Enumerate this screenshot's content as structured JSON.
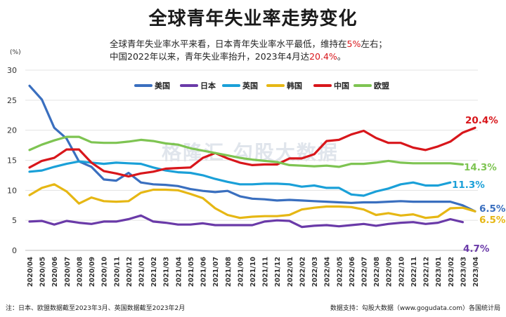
{
  "header": {
    "title": "全球青年失业率走势变化",
    "subtitle_line1_pre": "全球青年失业率水平来看，日本青年失业率水平最低，维持在",
    "subtitle_line1_hl": "5%",
    "subtitle_line1_post": "左右；",
    "subtitle_line2_pre": "中国2022年以来，青年失业率抬升，2023年4月达",
    "subtitle_line2_hl": "20.4%",
    "subtitle_line2_post": "。"
  },
  "watermark": "格隆汇   勾股大数据",
  "footer": {
    "note": "注：日本、欧盟数据截至2023年3月、英国数据截至2023年2月",
    "source": "数据支持：勾股大数据（www.gogudata.com）各国统计局"
  },
  "chart_data": {
    "type": "line",
    "yunit": "(%)",
    "ylim": [
      0,
      30
    ],
    "yticks": [
      0,
      5,
      10,
      15,
      20,
      25,
      30
    ],
    "grid": true,
    "legend_placement": "top-center",
    "x": [
      "2020/04",
      "2020/05",
      "2020/06",
      "2020/07",
      "2020/08",
      "2020/09",
      "2020/10",
      "2020/11",
      "2020/12",
      "2021/01",
      "2021/02",
      "2021/03",
      "2021/04",
      "2021/05",
      "2021/06",
      "2021/07",
      "2021/08",
      "2021/09",
      "2021/10",
      "2021/11",
      "2021/12",
      "2022/01",
      "2022/02",
      "2022/03",
      "2022/04",
      "2022/05",
      "2022/06",
      "2022/07",
      "2022/08",
      "2022/09",
      "2022/10",
      "2022/11",
      "2022/12",
      "2023/01",
      "2023/02",
      "2023/03",
      "2023/04"
    ],
    "series": [
      {
        "name": "美国",
        "color": "#3a6fbf",
        "values": [
          27.4,
          25.1,
          20.4,
          18.6,
          14.8,
          13.9,
          11.8,
          11.6,
          12.9,
          11.3,
          11.0,
          10.9,
          10.7,
          10.2,
          9.9,
          9.7,
          9.9,
          9.0,
          8.6,
          8.5,
          8.3,
          8.4,
          8.3,
          8.2,
          8.1,
          8.0,
          7.9,
          8.0,
          8.0,
          8.1,
          8.2,
          8.1,
          8.1,
          8.1,
          8.1,
          7.5,
          6.5
        ],
        "end_label": "6.5%"
      },
      {
        "name": "日本",
        "color": "#6a3aa8",
        "values": [
          4.8,
          4.9,
          4.3,
          4.9,
          4.6,
          4.4,
          4.8,
          4.8,
          5.2,
          5.8,
          4.8,
          4.6,
          4.3,
          4.3,
          4.5,
          4.2,
          4.2,
          4.2,
          4.2,
          4.8,
          5.0,
          4.9,
          3.9,
          4.1,
          4.2,
          4.0,
          4.2,
          4.4,
          4.1,
          4.4,
          4.6,
          4.7,
          4.4,
          4.6,
          5.2,
          4.7,
          null
        ],
        "end_label": "4.7%"
      },
      {
        "name": "英国",
        "color": "#1aa0d8",
        "values": [
          13.1,
          13.3,
          13.9,
          14.4,
          14.8,
          14.6,
          14.4,
          14.6,
          14.5,
          14.4,
          13.8,
          13.3,
          13.0,
          12.9,
          12.5,
          11.9,
          11.4,
          11.0,
          11.0,
          11.1,
          11.1,
          11.0,
          10.6,
          10.8,
          10.4,
          10.4,
          9.3,
          9.1,
          9.8,
          10.3,
          11.0,
          11.3,
          10.8,
          10.8,
          11.3,
          null,
          null
        ],
        "end_label": "11.3%"
      },
      {
        "name": "韩国",
        "color": "#e6b714",
        "values": [
          9.2,
          10.4,
          11.0,
          9.8,
          7.8,
          8.8,
          8.2,
          8.1,
          8.2,
          9.6,
          10.1,
          10.1,
          10.0,
          9.4,
          8.7,
          7.0,
          5.9,
          5.4,
          5.6,
          5.7,
          5.7,
          5.9,
          6.8,
          7.1,
          7.3,
          7.3,
          7.2,
          6.8,
          5.9,
          6.2,
          5.8,
          6.0,
          5.4,
          5.6,
          7.0,
          7.1,
          6.5
        ],
        "end_label": "6.5%"
      },
      {
        "name": "中国",
        "color": "#d8161b",
        "values": [
          13.8,
          14.9,
          15.4,
          16.8,
          16.8,
          14.6,
          13.2,
          12.8,
          12.3,
          12.8,
          13.1,
          13.6,
          13.7,
          13.8,
          15.4,
          16.2,
          15.3,
          14.6,
          14.2,
          14.3,
          14.3,
          15.3,
          15.3,
          16.0,
          18.2,
          18.4,
          19.3,
          19.9,
          18.7,
          17.9,
          17.9,
          17.1,
          16.7,
          17.3,
          18.1,
          19.6,
          20.4
        ],
        "end_label": "20.4%"
      },
      {
        "name": "欧盟",
        "color": "#7ec452",
        "values": [
          16.7,
          17.6,
          18.3,
          18.9,
          18.9,
          18.0,
          17.9,
          17.9,
          18.1,
          18.4,
          18.2,
          17.8,
          17.6,
          17.0,
          16.6,
          16.2,
          15.8,
          15.4,
          15.1,
          14.9,
          14.7,
          14.2,
          14.1,
          14.0,
          14.1,
          13.9,
          14.4,
          14.4,
          14.6,
          14.9,
          14.6,
          14.5,
          14.5,
          14.5,
          14.5,
          14.3,
          null
        ],
        "end_label": "14.3%"
      }
    ]
  }
}
